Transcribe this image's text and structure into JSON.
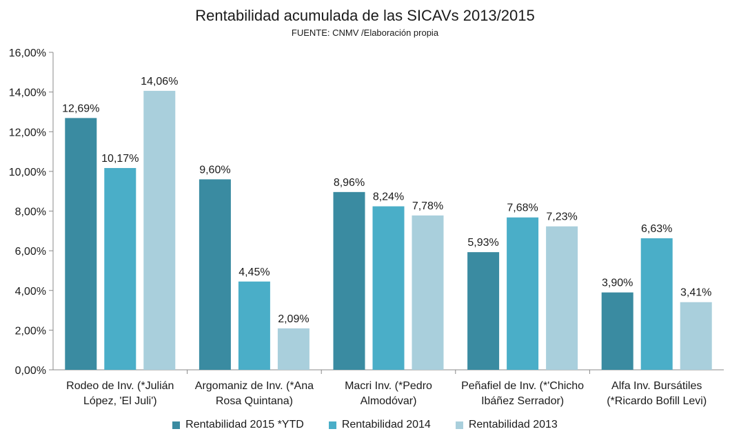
{
  "chart_data": {
    "type": "bar",
    "title": "Rentabilidad acumulada de las SICAVs 2013/2015",
    "subtitle": "FUENTE: CNMV /Elaboración propia",
    "categories": [
      [
        "Rodeo de Inv. (*Julián",
        "López, 'El Juli')"
      ],
      [
        "Argomaniz de Inv. (*Ana",
        "Rosa Quintana)"
      ],
      [
        "Macri Inv. (*Pedro",
        "Almodóvar)"
      ],
      [
        "Peñafiel de Inv. (*'Chicho",
        "Ibáñez Serrador)"
      ],
      [
        "Alfa Inv. Bursátiles",
        "(*Ricardo Bofill Levi)"
      ]
    ],
    "series": [
      {
        "name": "Rentabilidad 2015 *YTD",
        "color": "#3a8ba1",
        "values": [
          12.69,
          9.6,
          8.96,
          5.93,
          3.9
        ],
        "labels": [
          "12,69%",
          "9,60%",
          "8,96%",
          "5,93%",
          "3,90%"
        ]
      },
      {
        "name": "Rentabilidad 2014",
        "color": "#4aaec8",
        "values": [
          10.17,
          4.45,
          8.24,
          7.68,
          6.63
        ],
        "labels": [
          "10,17%",
          "4,45%",
          "8,24%",
          "7,68%",
          "6,63%"
        ]
      },
      {
        "name": "Rentabilidad 2013",
        "color": "#a9cfdc",
        "values": [
          14.06,
          2.09,
          7.78,
          7.23,
          3.41
        ],
        "labels": [
          "14,06%",
          "2,09%",
          "7,78%",
          "7,23%",
          "3,41%"
        ]
      }
    ],
    "ylim": [
      0,
      16
    ],
    "yticks": [
      0,
      2,
      4,
      6,
      8,
      10,
      12,
      14,
      16
    ],
    "ytick_labels": [
      "0,00%",
      "2,00%",
      "4,00%",
      "6,00%",
      "8,00%",
      "10,00%",
      "12,00%",
      "14,00%",
      "16,00%"
    ],
    "grid": false,
    "legend_position": "bottom"
  }
}
